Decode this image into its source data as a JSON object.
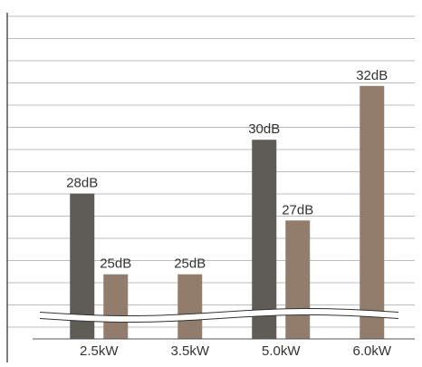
{
  "chart_data": {
    "type": "bar",
    "categories": [
      "2.5kW",
      "3.5kW",
      "5.0kW",
      "6.0kW"
    ],
    "series": [
      {
        "values": [
          28,
          null,
          30,
          null
        ]
      },
      {
        "values": [
          25,
          25,
          27,
          32
        ]
      }
    ],
    "data_labels": [
      [
        "28dB",
        "",
        "30dB",
        ""
      ],
      [
        "25dB",
        "25dB",
        "27dB",
        "32dB"
      ]
    ],
    "axis_break": true,
    "grid": true,
    "colors": {
      "series_1": "#5f5b57",
      "series_2": "#927c6c",
      "grid": "#bcbcbc",
      "axis": "#555555"
    }
  }
}
